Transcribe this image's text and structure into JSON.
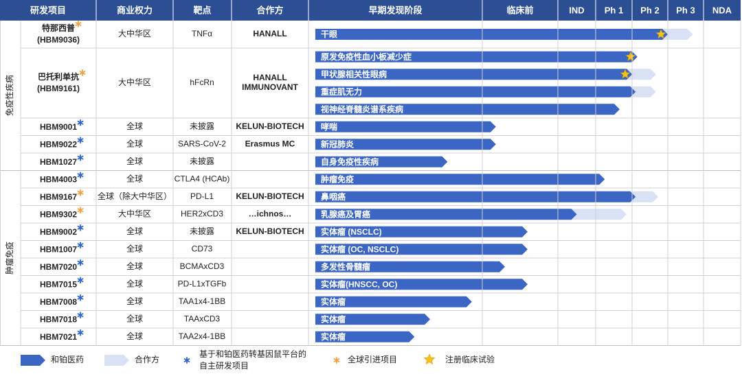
{
  "header": [
    "研发项目",
    "商业权力",
    "靶点",
    "合作方",
    "早期发现阶段",
    "临床前",
    "IND",
    "Ph 1",
    "Ph 2",
    "Ph 3",
    "NDA"
  ],
  "groups": [
    {
      "label": "免疫性疾病",
      "programs": [
        {
          "name": "特那西普",
          "code": "(HBM9036)",
          "origin": "in_licensed",
          "rights": "大中华区",
          "target": "TNFα",
          "partners": [
            "HANALL"
          ],
          "indications": [
            {
              "name": "干眼",
              "progress": 5.0,
              "partner_progress": 5.7,
              "registration_trial": true
            }
          ]
        },
        {
          "name": "巴托利单抗",
          "code": "(HBM9161)",
          "origin": "in_licensed",
          "rights": "大中华区",
          "target": "hFcRn",
          "partners": [
            "HANALL",
            "IMMUNOVANT"
          ],
          "indications": [
            {
              "name": "原发免疫性血小板减少症",
              "progress": 4.15,
              "registration_trial": true
            },
            {
              "name": "甲状腺相关性眼病",
              "progress": 4.0,
              "partner_progress": 4.67,
              "registration_trial": true
            },
            {
              "name": "重症肌无力",
              "progress": 4.1,
              "partner_progress": 4.67
            },
            {
              "name": "视神经脊髓炎谱系疾病",
              "progress": 3.66
            }
          ]
        },
        {
          "name": "HBM9001",
          "origin": "in_house",
          "rights": "全球",
          "target": "未披露",
          "partners": [
            "KELUN-BIOTECH"
          ],
          "indications": [
            {
              "name": "哮喘",
              "progress": 1.18
            }
          ]
        },
        {
          "name": "HBM9022",
          "origin": "in_house",
          "rights": "全球",
          "target": "SARS-CoV-2",
          "partners": [
            "Erasmus MC"
          ],
          "indications": [
            {
              "name": "新冠肺炎",
              "progress": 1.18
            }
          ]
        },
        {
          "name": "HBM1027",
          "origin": "in_house",
          "rights": "全球",
          "target": "未披露",
          "partners": [],
          "indications": [
            {
              "name": "自身免疫性疾病",
              "progress": 0.8
            }
          ]
        }
      ]
    },
    {
      "label": "肿瘤免疫",
      "programs": [
        {
          "name": "HBM4003",
          "origin": "in_house",
          "rights": "全球",
          "target": "CTLA4 (HCAb)",
          "partners": [],
          "indications": [
            {
              "name": "肿瘤免疫",
              "progress": 3.25
            }
          ]
        },
        {
          "name": "HBM9167",
          "origin": "in_licensed",
          "rights": "全球（除大中华区）",
          "target": "PD-L1",
          "partners": [
            "KELUN-BIOTECH"
          ],
          "indications": [
            {
              "name": "鼻咽癌",
              "progress": 4.1,
              "partner_progress": 4.73
            }
          ]
        },
        {
          "name": "HBM9302",
          "origin": "in_licensed",
          "rights": "大中华区",
          "target": "HER2xCD3",
          "partners": [
            "…ichnos…"
          ],
          "indications": [
            {
              "name": "乳腺癌及胃癌",
              "progress": 2.5,
              "partner_progress": 3.85
            }
          ]
        },
        {
          "name": "HBM9002",
          "origin": "in_house",
          "rights": "全球",
          "target": "未披露",
          "partners": [
            "KELUN-BIOTECH"
          ],
          "indications": [
            {
              "name": "实体瘤 (NSCLC)",
              "progress": 1.6
            }
          ]
        },
        {
          "name": "HBM1007",
          "origin": "in_house",
          "rights": "全球",
          "target": "CD73",
          "partners": [],
          "indications": [
            {
              "name": "实体瘤 (OC, NSCLC)",
              "progress": 1.6
            }
          ]
        },
        {
          "name": "HBM7020",
          "origin": "in_house",
          "rights": "全球",
          "target": "BCMAxCD3",
          "partners": [],
          "indications": [
            {
              "name": "多发性骨髓瘤",
              "progress": 1.3
            }
          ]
        },
        {
          "name": "HBM7015",
          "origin": "in_house",
          "rights": "全球",
          "target": "PD-L1xTGFb",
          "partners": [],
          "indications": [
            {
              "name": "实体瘤(HNSCC, OC)",
              "progress": 1.6
            }
          ]
        },
        {
          "name": "HBM7008",
          "origin": "in_house",
          "rights": "全球",
          "target": "TAA1x4-1BB",
          "partners": [],
          "indications": [
            {
              "name": "实体瘤",
              "progress": 0.94
            }
          ]
        },
        {
          "name": "HBM7018",
          "origin": "in_house",
          "rights": "全球",
          "target": "TAAxCD3",
          "partners": [],
          "indications": [
            {
              "name": "实体瘤",
              "progress": 0.7
            }
          ]
        },
        {
          "name": "HBM7021",
          "origin": "in_house",
          "rights": "全球",
          "target": "TAA2x4-1BB",
          "partners": [],
          "indications": [
            {
              "name": "实体瘤",
              "progress": 0.61
            }
          ]
        }
      ]
    }
  ],
  "legend": {
    "company": "和铂医药",
    "partner": "合作方",
    "in_house": [
      "基于和铂医药转基因鼠平台的",
      "自主研发项目"
    ],
    "in_licensed": "全球引进项目",
    "registration_trial": "注册临床试验"
  }
}
